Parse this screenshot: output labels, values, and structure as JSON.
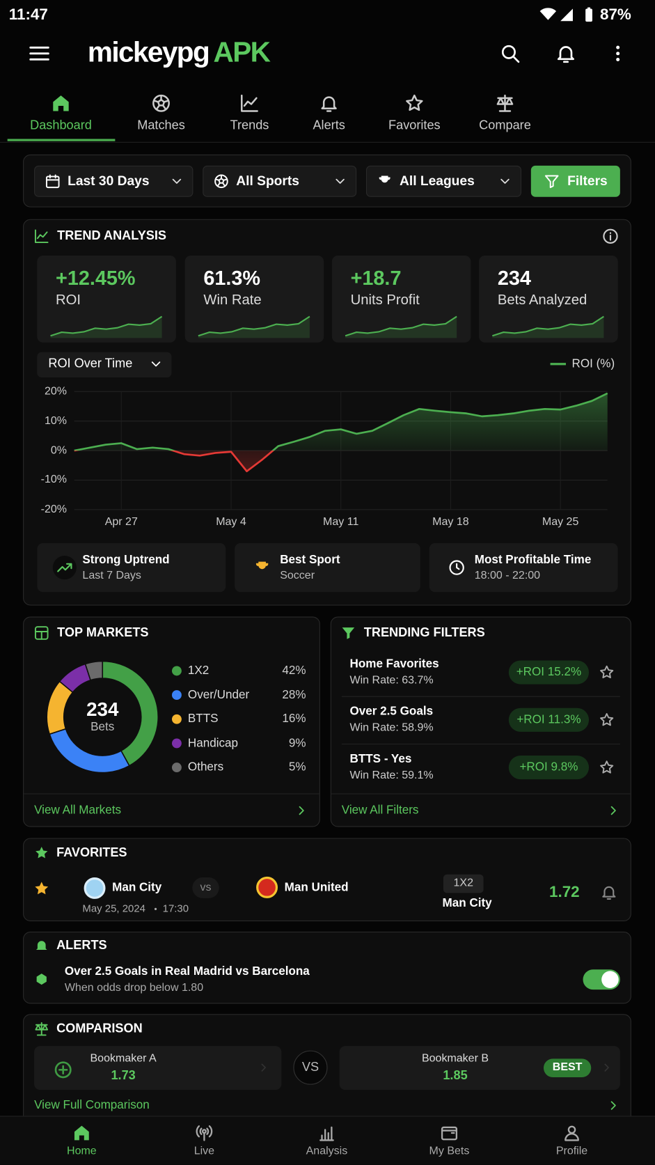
{
  "status_bar": {
    "time": "11:47",
    "battery": "87%"
  },
  "header": {
    "brand": "mickeypg",
    "brand_accent": "APK"
  },
  "tabs": {
    "items": [
      "Dashboard",
      "Matches",
      "Trends",
      "Alerts",
      "Favorites",
      "Compare"
    ],
    "active": 0
  },
  "filters": {
    "dropdowns": [
      "Last 30 Days",
      "All Sports",
      "All Leagues"
    ],
    "button": "Filters"
  },
  "trend_analysis": {
    "title": "TREND ANALYSIS",
    "kpis": [
      {
        "value": "+12.45%",
        "label": "ROI",
        "color": "#5cc85f"
      },
      {
        "value": "61.3%",
        "label": "Win Rate",
        "color": "#ffffff"
      },
      {
        "value": "+18.7",
        "label": "Units Profit",
        "color": "#5cc85f"
      },
      {
        "value": "234",
        "label": "Bets Analyzed",
        "color": "#ffffff"
      }
    ],
    "chart": {
      "type": "line",
      "selector": "ROI Over Time",
      "categories": [
        null,
        null,
        null,
        "Apr 27",
        null,
        null,
        null,
        null,
        null,
        null,
        "May 4",
        null,
        null,
        null,
        null,
        null,
        null,
        "May 11",
        null,
        null,
        null,
        null,
        null,
        null,
        "May 18",
        null,
        null,
        null,
        null,
        null,
        null,
        "May 25",
        null,
        null,
        null
      ],
      "series": [
        {
          "name": "ROI (%)",
          "color": "#4caf50",
          "negative_color": "#e53935",
          "values": [
            0,
            1,
            2,
            2.5,
            0.5,
            1,
            0.5,
            -1.2,
            -1.7,
            -0.8,
            -0.4,
            -7,
            -3,
            1.5,
            3,
            4.6,
            6.7,
            7.2,
            5.7,
            6.7,
            9.3,
            12,
            14.1,
            13.5,
            13,
            12.6,
            11.6,
            12,
            12.6,
            13.5,
            14.1,
            13.9,
            15.2,
            16.8,
            19.4
          ]
        }
      ],
      "ylim": [
        -20,
        20
      ],
      "yticks": [
        {
          "value": 20,
          "label": "20%"
        },
        {
          "value": 10,
          "label": "10%"
        },
        {
          "value": 0,
          "label": "0%"
        },
        {
          "value": -10,
          "label": "-10%"
        },
        {
          "value": -20,
          "label": "-20%"
        }
      ],
      "grid": true
    },
    "insights": [
      {
        "title": "Strong Uptrend",
        "detail": "Last 7 Days"
      },
      {
        "title": "Best Sport",
        "detail": "Soccer"
      },
      {
        "title": "Most Profitable Time",
        "detail": "18:00 - 22:00"
      }
    ]
  },
  "top_markets": {
    "title": "TOP MARKETS",
    "total": "234",
    "total_label": "Bets",
    "chart": {
      "type": "pie",
      "categories": [
        "1X2",
        "Over/Under",
        "BTTS",
        "Handicap",
        "Others"
      ],
      "values": [
        42,
        28,
        16,
        9,
        5
      ],
      "value_labels": [
        "42%",
        "28%",
        "16%",
        "9%",
        "5%"
      ],
      "colors": [
        "#43a047",
        "#3b82f6",
        "#f5b430",
        "#7b2fa8",
        "#6b6b6b"
      ]
    },
    "link": "View All Markets"
  },
  "trending_filters": {
    "title": "TRENDING FILTERS",
    "items": [
      {
        "name": "Home Favorites",
        "win_rate": "Win Rate: 63.7%",
        "roi": "+ROI 15.2%"
      },
      {
        "name": "Over 2.5 Goals",
        "win_rate": "Win Rate: 58.9%",
        "roi": "+ROI 11.3%"
      },
      {
        "name": "BTTS - Yes",
        "win_rate": "Win Rate: 59.1%",
        "roi": "+ROI 9.8%"
      }
    ],
    "link": "View All Filters"
  },
  "favorites": {
    "title": "FAVORITES",
    "match": {
      "home": "Man City",
      "separator": "vs",
      "away": "Man United",
      "date": "May 25, 2024",
      "time": "17:30",
      "market": "1X2",
      "pick": "Man City",
      "odds": "1.72"
    }
  },
  "alerts": {
    "title": "ALERTS",
    "items": [
      {
        "title": "Over 2.5 Goals in Real Madrid vs Barcelona",
        "condition": "When odds drop below 1.80",
        "enabled": true
      }
    ]
  },
  "comparison": {
    "title": "COMPARISON",
    "bookmakers": [
      {
        "name": "Bookmaker A",
        "odds": "1.73"
      },
      {
        "name": "Bookmaker B",
        "odds": "1.85",
        "badge": "BEST"
      }
    ],
    "separator": "VS",
    "link": "View Full Comparison"
  },
  "bottom_nav": {
    "items": [
      "Home",
      "Live",
      "Analysis",
      "My Bets",
      "Profile"
    ],
    "active": 0
  }
}
